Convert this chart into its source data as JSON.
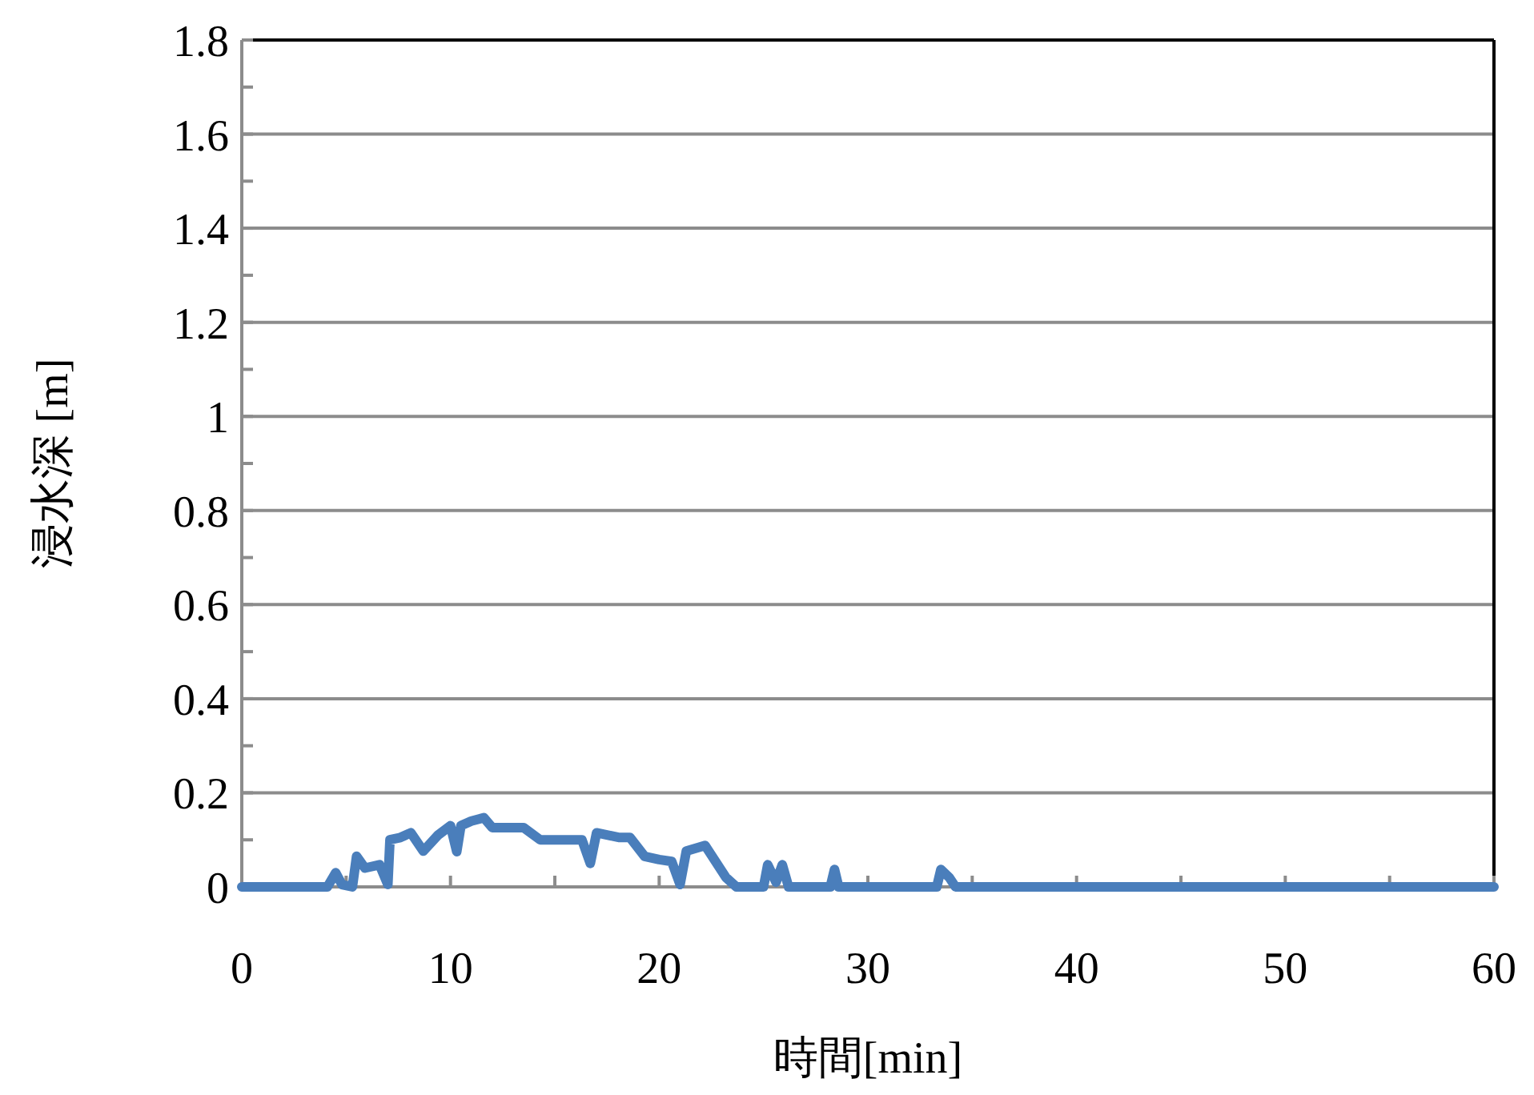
{
  "chart_data": {
    "type": "line",
    "xlabel": "時間[min]",
    "ylabel": "浸水深 [m]",
    "xlim": [
      0,
      60
    ],
    "ylim": [
      0,
      1.8
    ],
    "xticks": [
      0,
      {
        "value": 5,
        "label": null
      },
      10,
      {
        "value": 15,
        "label": null
      },
      20,
      {
        "value": 25,
        "label": null
      },
      30,
      {
        "value": 35,
        "label": null
      },
      40,
      {
        "value": 45,
        "label": null
      },
      50,
      {
        "value": 55,
        "label": null
      },
      60
    ],
    "yticks": [
      0,
      {
        "value": 0.1,
        "label": null
      },
      0.2,
      {
        "value": 0.3,
        "label": null
      },
      0.4,
      {
        "value": 0.5,
        "label": null
      },
      0.6,
      {
        "value": 0.7,
        "label": null
      },
      0.8,
      {
        "value": 0.9,
        "label": null
      },
      1,
      {
        "value": 1.1,
        "label": null
      },
      1.2,
      {
        "value": 1.3,
        "label": null
      },
      1.4,
      {
        "value": 1.5,
        "label": null
      },
      1.6,
      {
        "value": 1.7,
        "label": null
      },
      1.8
    ],
    "grid": "y",
    "marker": "none",
    "line_style": "solid",
    "series": [
      {
        "color": "#4a7ebb",
        "x": [
          0,
          4.1,
          4.5,
          4.8,
          5.3,
          5.5,
          5.9,
          6.6,
          7.0,
          7.1,
          7.6,
          8.1,
          8.7,
          9.4,
          10.0,
          10.3,
          10.5,
          11.0,
          11.6,
          12.0,
          13.0,
          13.5,
          14.3,
          15.8,
          16.3,
          16.7,
          17.0,
          18.1,
          18.6,
          19.3,
          20.0,
          20.6,
          21.0,
          21.3,
          22.2,
          22.7,
          23.2,
          23.7,
          25.0,
          25.2,
          25.6,
          25.9,
          26.2,
          28.2,
          28.4,
          28.6,
          33.3,
          33.5,
          33.9,
          34.2,
          60
        ],
        "values": [
          0,
          0,
          0.03,
          0.005,
          0,
          0.065,
          0.04,
          0.047,
          0.005,
          0.1,
          0.105,
          0.115,
          0.076,
          0.11,
          0.13,
          0.075,
          0.13,
          0.14,
          0.147,
          0.126,
          0.126,
          0.126,
          0.1,
          0.1,
          0.1,
          0.05,
          0.115,
          0.105,
          0.105,
          0.065,
          0.058,
          0.054,
          0.005,
          0.076,
          0.088,
          0.054,
          0.02,
          0,
          0,
          0.047,
          0.01,
          0.047,
          0,
          0,
          0.037,
          0,
          0,
          0.037,
          0.02,
          0,
          0
        ]
      }
    ]
  }
}
